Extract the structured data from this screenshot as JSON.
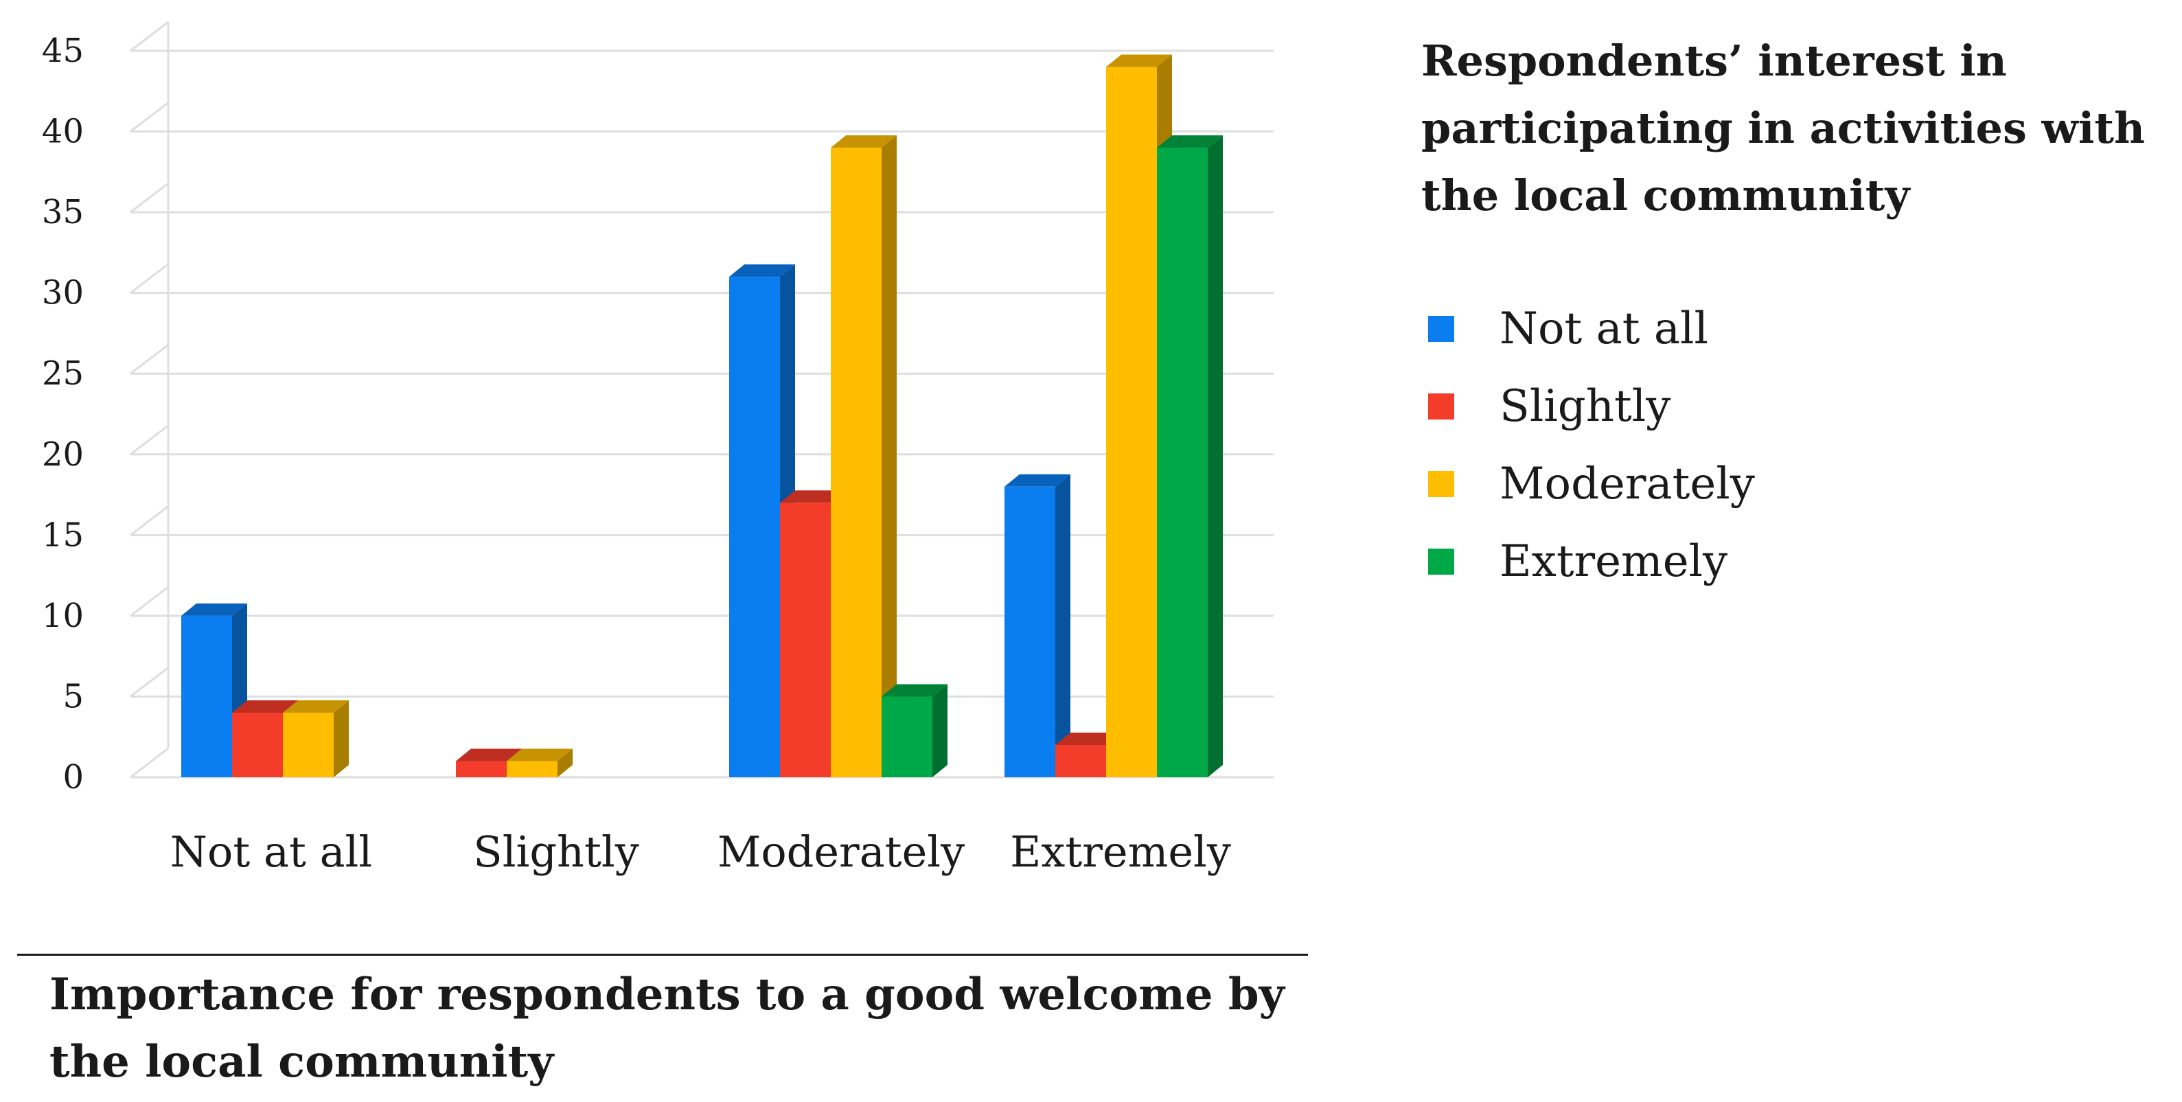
{
  "chart_data": {
    "type": "bar",
    "title": "Respondents’ interest in participating in activities with the local community",
    "xlabel": "Importance for respondents to a good welcome by the local community",
    "ylabel": "",
    "ylim": [
      0,
      45
    ],
    "yticks": [
      "0",
      "5",
      "10",
      "15",
      "20",
      "25",
      "30",
      "35",
      "40",
      "45"
    ],
    "categories": [
      "Not at all",
      "Slightly",
      "Moderately",
      "Extremely"
    ],
    "series": [
      {
        "name": "Not at all",
        "color": "#0a7ef0",
        "values": [
          10,
          0,
          31,
          18
        ]
      },
      {
        "name": "Slightly",
        "color": "#f43c2b",
        "values": [
          4,
          1,
          17,
          2
        ]
      },
      {
        "name": "Moderately",
        "color": "#ffbd00",
        "values": [
          4,
          1,
          39,
          44
        ]
      },
      {
        "name": "Extremely",
        "color": "#00a847",
        "values": [
          0,
          0,
          5,
          39
        ]
      }
    ],
    "grid": true,
    "legend": "right"
  }
}
